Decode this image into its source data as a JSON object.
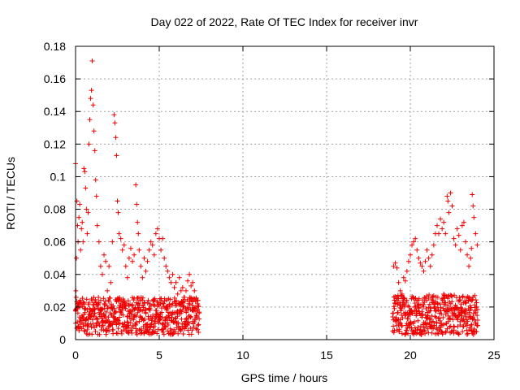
{
  "chart_data": {
    "type": "scatter",
    "title": "Day 022 of 2022, Rate Of TEC Index for receiver invr",
    "xlabel": "GPS time / hours",
    "ylabel": "ROTI / TECUs",
    "xlim": [
      0,
      25
    ],
    "ylim": [
      0,
      0.18
    ],
    "grid": true,
    "marker": "+",
    "color": "#ee0000",
    "xticks": [
      0,
      5,
      10,
      15,
      20,
      25
    ],
    "xtick_labels": [
      "0",
      "5",
      "10",
      "15",
      "20",
      "25"
    ],
    "yticks": [
      0,
      0.02,
      0.04,
      0.06,
      0.08,
      0.1,
      0.12,
      0.14,
      0.16,
      0.18
    ],
    "ytick_labels": [
      "0",
      "0.02",
      "0.04",
      "0.06",
      "0.08",
      "0.1",
      "0.12",
      "0.14",
      "0.16",
      "0.18"
    ],
    "series": [
      {
        "name": "ROTI",
        "points": [
          [
            0.0,
            0.108
          ],
          [
            0.02,
            0.03
          ],
          [
            0.05,
            0.05
          ],
          [
            0.08,
            0.085
          ],
          [
            0.12,
            0.07
          ],
          [
            0.15,
            0.06
          ],
          [
            0.2,
            0.075
          ],
          [
            0.25,
            0.083
          ],
          [
            0.3,
            0.055
          ],
          [
            0.35,
            0.068
          ],
          [
            0.4,
            0.072
          ],
          [
            0.45,
            0.06
          ],
          [
            0.5,
            0.105
          ],
          [
            0.55,
            0.103
          ],
          [
            0.6,
            0.093
          ],
          [
            0.65,
            0.08
          ],
          [
            0.7,
            0.065
          ],
          [
            0.75,
            0.078
          ],
          [
            0.8,
            0.12
          ],
          [
            0.85,
            0.135
          ],
          [
            0.9,
            0.148
          ],
          [
            0.95,
            0.153
          ],
          [
            1.0,
            0.171
          ],
          [
            1.05,
            0.144
          ],
          [
            1.1,
            0.128
          ],
          [
            1.15,
            0.116
          ],
          [
            1.2,
            0.098
          ],
          [
            1.25,
            0.088
          ],
          [
            1.3,
            0.07
          ],
          [
            1.4,
            0.06
          ],
          [
            1.5,
            0.045
          ],
          [
            1.6,
            0.04
          ],
          [
            1.7,
            0.052
          ],
          [
            1.8,
            0.048
          ],
          [
            1.9,
            0.03
          ],
          [
            2.0,
            0.045
          ],
          [
            2.1,
            0.035
          ],
          [
            2.2,
            0.06
          ],
          [
            2.3,
            0.138
          ],
          [
            2.35,
            0.133
          ],
          [
            2.4,
            0.124
          ],
          [
            2.45,
            0.113
          ],
          [
            2.5,
            0.085
          ],
          [
            2.55,
            0.078
          ],
          [
            2.6,
            0.065
          ],
          [
            2.7,
            0.062
          ],
          [
            2.8,
            0.055
          ],
          [
            2.9,
            0.058
          ],
          [
            3.0,
            0.045
          ],
          [
            3.1,
            0.038
          ],
          [
            3.2,
            0.05
          ],
          [
            3.3,
            0.056
          ],
          [
            3.4,
            0.048
          ],
          [
            3.5,
            0.052
          ],
          [
            3.6,
            0.095
          ],
          [
            3.65,
            0.083
          ],
          [
            3.7,
            0.072
          ],
          [
            3.75,
            0.065
          ],
          [
            3.8,
            0.055
          ],
          [
            3.9,
            0.045
          ],
          [
            4.0,
            0.038
          ],
          [
            4.1,
            0.05
          ],
          [
            4.2,
            0.042
          ],
          [
            4.3,
            0.048
          ],
          [
            4.4,
            0.055
          ],
          [
            4.5,
            0.06
          ],
          [
            4.6,
            0.058
          ],
          [
            4.7,
            0.052
          ],
          [
            4.8,
            0.065
          ],
          [
            4.9,
            0.068
          ],
          [
            5.0,
            0.062
          ],
          [
            5.1,
            0.055
          ],
          [
            5.2,
            0.062
          ],
          [
            5.3,
            0.05
          ],
          [
            5.4,
            0.045
          ],
          [
            5.5,
            0.042
          ],
          [
            5.6,
            0.038
          ],
          [
            5.7,
            0.035
          ],
          [
            5.8,
            0.04
          ],
          [
            5.9,
            0.032
          ],
          [
            6.0,
            0.035
          ],
          [
            6.1,
            0.028
          ],
          [
            6.2,
            0.038
          ],
          [
            6.3,
            0.03
          ],
          [
            6.4,
            0.032
          ],
          [
            6.5,
            0.026
          ],
          [
            6.6,
            0.03
          ],
          [
            6.7,
            0.036
          ],
          [
            6.8,
            0.04
          ],
          [
            6.9,
            0.033
          ],
          [
            7.0,
            0.035
          ],
          [
            7.1,
            0.03
          ],
          [
            7.2,
            0.025
          ],
          [
            7.3,
            0.022
          ],
          [
            19.0,
            0.045
          ],
          [
            19.1,
            0.047
          ],
          [
            19.2,
            0.044
          ],
          [
            19.3,
            0.035
          ],
          [
            19.4,
            0.03
          ],
          [
            19.5,
            0.028
          ],
          [
            19.6,
            0.038
          ],
          [
            19.7,
            0.036
          ],
          [
            19.8,
            0.042
          ],
          [
            19.9,
            0.048
          ],
          [
            20.0,
            0.052
          ],
          [
            20.1,
            0.058
          ],
          [
            20.2,
            0.06
          ],
          [
            20.3,
            0.062
          ],
          [
            20.4,
            0.055
          ],
          [
            20.5,
            0.05
          ],
          [
            20.6,
            0.047
          ],
          [
            20.7,
            0.045
          ],
          [
            20.8,
            0.042
          ],
          [
            20.9,
            0.048
          ],
          [
            21.0,
            0.055
          ],
          [
            21.1,
            0.05
          ],
          [
            21.2,
            0.045
          ],
          [
            21.3,
            0.052
          ],
          [
            21.4,
            0.058
          ],
          [
            21.5,
            0.065
          ],
          [
            21.6,
            0.07
          ],
          [
            21.7,
            0.065
          ],
          [
            21.8,
            0.074
          ],
          [
            21.9,
            0.068
          ],
          [
            22.0,
            0.072
          ],
          [
            22.1,
            0.065
          ],
          [
            22.2,
            0.088
          ],
          [
            22.25,
            0.085
          ],
          [
            22.3,
            0.078
          ],
          [
            22.4,
            0.09
          ],
          [
            22.5,
            0.082
          ],
          [
            22.6,
            0.062
          ],
          [
            22.7,
            0.058
          ],
          [
            22.8,
            0.068
          ],
          [
            22.9,
            0.064
          ],
          [
            23.0,
            0.055
          ],
          [
            23.1,
            0.07
          ],
          [
            23.2,
            0.072
          ],
          [
            23.3,
            0.06
          ],
          [
            23.4,
            0.052
          ],
          [
            23.5,
            0.045
          ],
          [
            23.6,
            0.05
          ],
          [
            23.65,
            0.056
          ],
          [
            23.7,
            0.089
          ],
          [
            23.75,
            0.082
          ],
          [
            23.8,
            0.075
          ],
          [
            23.9,
            0.065
          ],
          [
            24.0,
            0.058
          ]
        ],
        "dense_bands": [
          {
            "x_start": 0.0,
            "x_end": 7.4,
            "y_min": 0.003,
            "y_max": 0.026
          },
          {
            "x_start": 18.95,
            "x_end": 24.05,
            "y_min": 0.003,
            "y_max": 0.028
          }
        ]
      }
    ]
  }
}
